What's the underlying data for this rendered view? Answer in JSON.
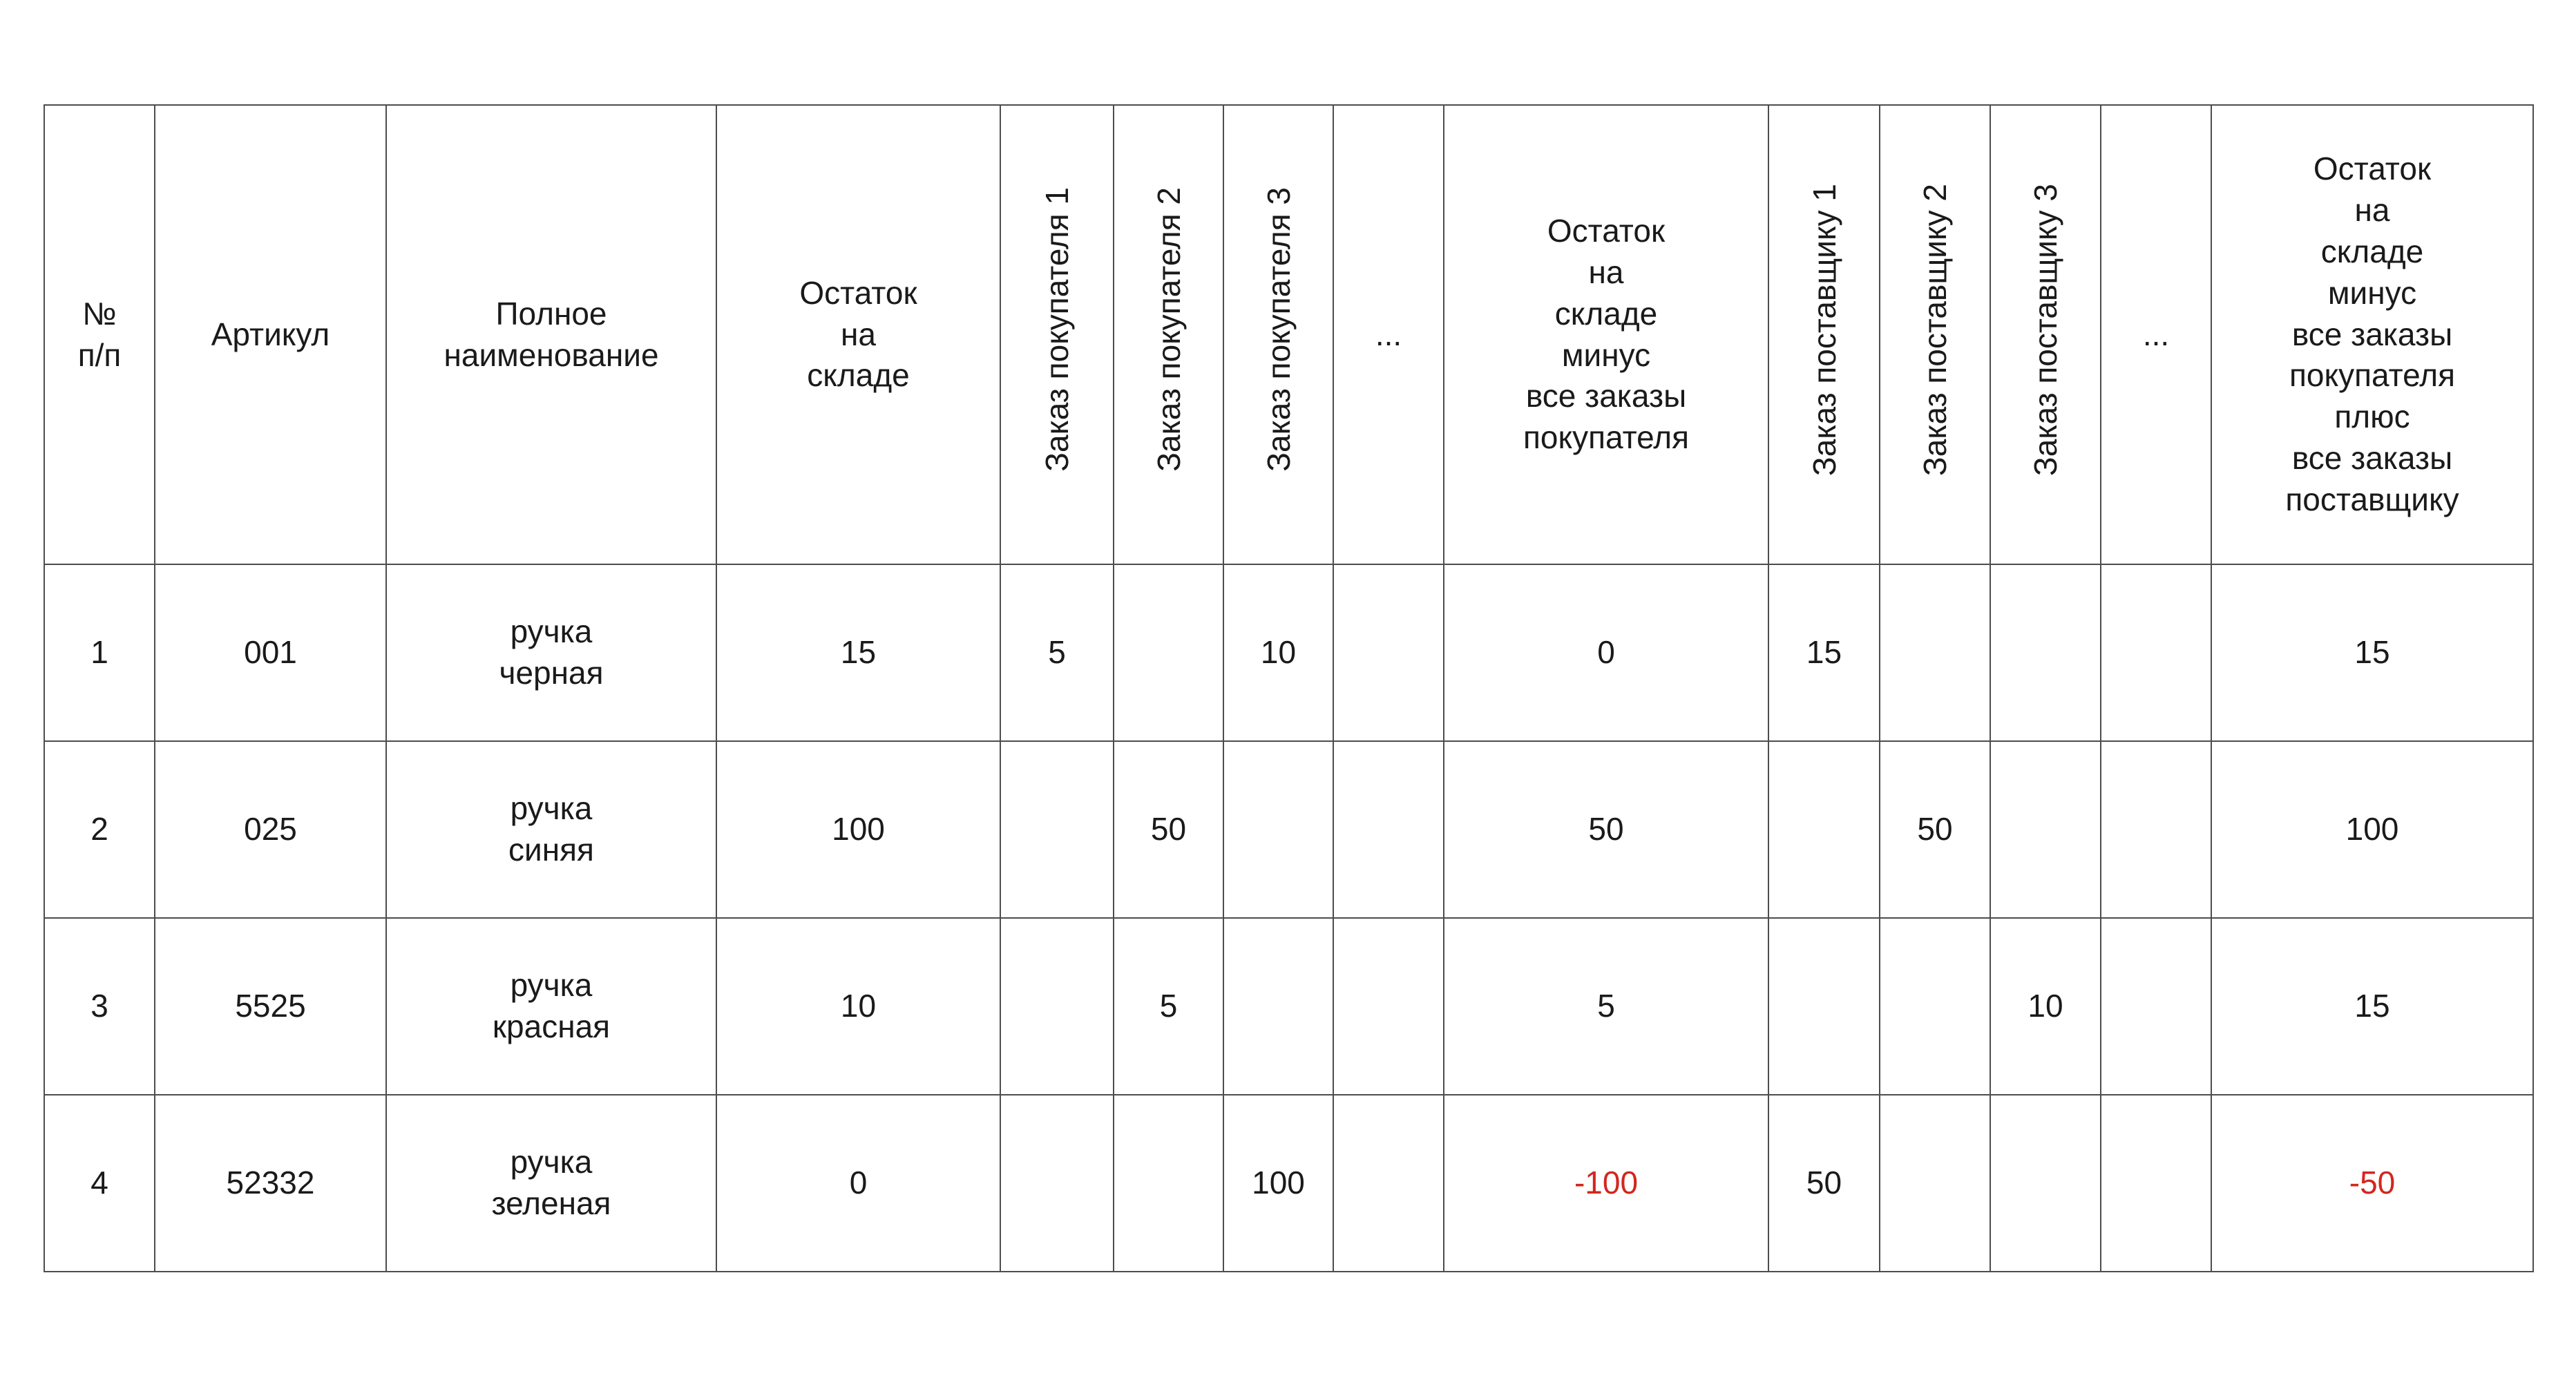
{
  "table": {
    "border_color": "#4d4d4d",
    "text_color": "#1a1a1a",
    "negative_color": "#d2271e",
    "headers": {
      "num": "№\nп/п",
      "sku": "Артикул",
      "name": "Полное\nнаименование",
      "stock": "Остаток\nна\nскладе",
      "buyer1": "Заказ покупателя 1",
      "buyer2": "Заказ покупателя 2",
      "buyer3": "Заказ покупателя 3",
      "dots_buyers": "...",
      "stock_minus_buyers": "Остаток\nна\nскладе\nминус\nвсе заказы\nпокупателя",
      "supplier1": "Заказ поставщику 1",
      "supplier2": "Заказ поставщику 2",
      "supplier3": "Заказ поставщику 3",
      "dots_suppliers": "...",
      "stock_final": "Остаток\nна\nскладе\nминус\nвсе заказы\nпокупателя\nплюс\nвсе заказы\nпоставщику"
    },
    "rows": [
      {
        "cells": [
          "1",
          "001",
          "ручка\nчерная",
          "15",
          "5",
          "",
          "10",
          "",
          "0",
          "15",
          "",
          "",
          "",
          "15"
        ]
      },
      {
        "cells": [
          "2",
          "025",
          "ручка\nсиняя",
          "100",
          "",
          "50",
          "",
          "",
          "50",
          "",
          "50",
          "",
          "",
          "100"
        ]
      },
      {
        "cells": [
          "3",
          "5525",
          "ручка\nкрасная",
          "10",
          "",
          "5",
          "",
          "",
          "5",
          "",
          "",
          "10",
          "",
          "15"
        ]
      },
      {
        "cells": [
          "4",
          "52332",
          "ручка\nзеленая",
          "0",
          "",
          "",
          "100",
          "",
          "-100",
          "50",
          "",
          "",
          "",
          "-50"
        ]
      }
    ]
  }
}
